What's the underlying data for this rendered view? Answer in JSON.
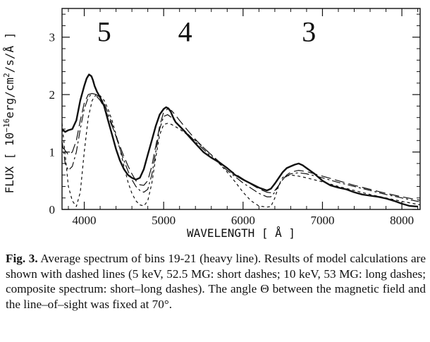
{
  "chart_data": {
    "type": "line",
    "xlabel": "WAVELENGTH  [ Å ]",
    "ylabel": "FLUX  [ 10",
    "ylabel_exponent": "−16",
    "ylabel_units": "erg/cm",
    "ylabel_units_exponent": "2",
    "ylabel_tail": "/s/Å ]",
    "xlim": [
      3720,
      8230
    ],
    "ylim": [
      0,
      3.5
    ],
    "x_ticks": [
      4000,
      5000,
      6000,
      7000,
      8000
    ],
    "y_ticks": [
      0,
      1,
      2,
      3
    ],
    "grid": false,
    "annotations": [
      {
        "text": "5",
        "x": 4250,
        "y": 3.1
      },
      {
        "text": "4",
        "x": 5270,
        "y": 3.1
      },
      {
        "text": "3",
        "x": 6830,
        "y": 3.1
      }
    ],
    "series": [
      {
        "style": "heavy",
        "x": [
          3720,
          3760,
          3800,
          3850,
          3900,
          3950,
          4000,
          4030,
          4060,
          4090,
          4110,
          4130,
          4160,
          4200,
          4250,
          4300,
          4350,
          4400,
          4450,
          4500,
          4550,
          4600,
          4650,
          4700,
          4750,
          4800,
          4850,
          4900,
          4950,
          5000,
          5030,
          5060,
          5090,
          5120,
          5150,
          5200,
          5250,
          5300,
          5400,
          5500,
          5600,
          5700,
          5800,
          5900,
          6000,
          6100,
          6200,
          6300,
          6350,
          6400,
          6450,
          6500,
          6550,
          6600,
          6650,
          6700,
          6750,
          6800,
          6900,
          7000,
          7100,
          7200,
          7300,
          7400,
          7500,
          7600,
          7700,
          7800,
          7900,
          8000,
          8100,
          8200
        ],
        "y": [
          1.4,
          1.35,
          1.38,
          1.4,
          1.55,
          1.9,
          2.15,
          2.28,
          2.35,
          2.32,
          2.25,
          2.15,
          2.05,
          1.95,
          1.8,
          1.55,
          1.3,
          1.05,
          0.85,
          0.7,
          0.6,
          0.55,
          0.52,
          0.55,
          0.7,
          0.95,
          1.2,
          1.45,
          1.65,
          1.75,
          1.78,
          1.76,
          1.7,
          1.6,
          1.52,
          1.45,
          1.38,
          1.3,
          1.15,
          1.0,
          0.9,
          0.82,
          0.72,
          0.6,
          0.52,
          0.45,
          0.38,
          0.33,
          0.36,
          0.45,
          0.55,
          0.65,
          0.72,
          0.75,
          0.78,
          0.8,
          0.77,
          0.72,
          0.62,
          0.5,
          0.42,
          0.38,
          0.35,
          0.3,
          0.26,
          0.24,
          0.22,
          0.19,
          0.15,
          0.1,
          0.06,
          0.05
        ]
      },
      {
        "style": "short-dash",
        "x": [
          3720,
          3800,
          3850,
          3900,
          3950,
          4000,
          4050,
          4100,
          4150,
          4200,
          4250,
          4300,
          4350,
          4400,
          4450,
          4500,
          4550,
          4600,
          4650,
          4700,
          4750,
          4800,
          4850,
          4900,
          4950,
          5000,
          5050,
          5100,
          5200,
          5300,
          5400,
          5500,
          5600,
          5700,
          5800,
          5900,
          6000,
          6100,
          6200,
          6300,
          6350,
          6400,
          6450,
          6500,
          6600,
          6700,
          6800,
          7000,
          7200,
          7400,
          7600,
          7800,
          8000,
          8230
        ],
        "y": [
          1.5,
          0.4,
          0.15,
          0.05,
          0.3,
          1.0,
          1.6,
          1.9,
          2.0,
          1.98,
          1.9,
          1.75,
          1.55,
          1.3,
          1.05,
          0.75,
          0.48,
          0.28,
          0.15,
          0.08,
          0.06,
          0.15,
          0.45,
          0.9,
          1.3,
          1.48,
          1.5,
          1.48,
          1.4,
          1.3,
          1.2,
          1.08,
          0.95,
          0.8,
          0.65,
          0.48,
          0.3,
          0.15,
          0.06,
          0.04,
          0.05,
          0.2,
          0.42,
          0.56,
          0.6,
          0.58,
          0.55,
          0.48,
          0.4,
          0.33,
          0.26,
          0.2,
          0.14,
          0.08
        ]
      },
      {
        "style": "long-dash",
        "x": [
          3720,
          3800,
          3850,
          3900,
          3950,
          4000,
          4050,
          4100,
          4150,
          4200,
          4250,
          4300,
          4350,
          4400,
          4450,
          4500,
          4550,
          4600,
          4650,
          4700,
          4750,
          4800,
          4850,
          4900,
          4950,
          5000,
          5050,
          5100,
          5150,
          5200,
          5300,
          5400,
          5500,
          5600,
          5700,
          5800,
          5900,
          6000,
          6100,
          6200,
          6300,
          6350,
          6400,
          6450,
          6500,
          6550,
          6600,
          6700,
          6800,
          7000,
          7200,
          7400,
          7600,
          7800,
          8000,
          8230
        ],
        "y": [
          1.1,
          0.95,
          1.0,
          1.2,
          1.55,
          1.85,
          2.0,
          2.02,
          1.98,
          1.9,
          1.78,
          1.62,
          1.45,
          1.28,
          1.1,
          0.92,
          0.76,
          0.62,
          0.5,
          0.43,
          0.42,
          0.5,
          0.75,
          1.1,
          1.45,
          1.7,
          1.75,
          1.72,
          1.64,
          1.55,
          1.38,
          1.22,
          1.08,
          0.95,
          0.83,
          0.72,
          0.62,
          0.53,
          0.44,
          0.36,
          0.3,
          0.29,
          0.33,
          0.42,
          0.52,
          0.6,
          0.65,
          0.68,
          0.66,
          0.58,
          0.5,
          0.42,
          0.35,
          0.28,
          0.22,
          0.16
        ]
      },
      {
        "style": "short-long-dash",
        "x": [
          3720,
          3760,
          3800,
          3850,
          3900,
          3950,
          4000,
          4050,
          4100,
          4150,
          4200,
          4250,
          4300,
          4350,
          4400,
          4450,
          4500,
          4550,
          4600,
          4650,
          4700,
          4750,
          4800,
          4850,
          4900,
          4950,
          5000,
          5050,
          5100,
          5200,
          5300,
          5400,
          5500,
          5600,
          5700,
          5800,
          5900,
          6000,
          6100,
          6200,
          6300,
          6350,
          6400,
          6450,
          6500,
          6550,
          6600,
          6700,
          6800,
          7000,
          7200,
          7400,
          7600,
          7800,
          8000,
          8230
        ],
        "y": [
          1.2,
          0.8,
          0.68,
          0.75,
          1.0,
          1.4,
          1.75,
          1.95,
          2.02,
          2.0,
          1.95,
          1.85,
          1.68,
          1.48,
          1.27,
          1.05,
          0.85,
          0.67,
          0.52,
          0.4,
          0.33,
          0.3,
          0.35,
          0.6,
          1.0,
          1.4,
          1.62,
          1.65,
          1.6,
          1.46,
          1.32,
          1.18,
          1.05,
          0.92,
          0.8,
          0.68,
          0.57,
          0.46,
          0.37,
          0.28,
          0.22,
          0.22,
          0.3,
          0.42,
          0.52,
          0.58,
          0.62,
          0.64,
          0.62,
          0.55,
          0.47,
          0.4,
          0.33,
          0.26,
          0.2,
          0.13
        ]
      }
    ]
  },
  "caption": {
    "label": "Fig. 3.",
    "text": " Average spectrum of bins 19-21 (heavy line). Results of model calculations are shown with dashed lines (5 keV, 52.5 MG: short dashes; 10 keV, 53 MG: long dashes; composite spectrum: short–long dashes). The angle Θ between the magnetic field and the line–of–sight was fixed at 70°."
  }
}
